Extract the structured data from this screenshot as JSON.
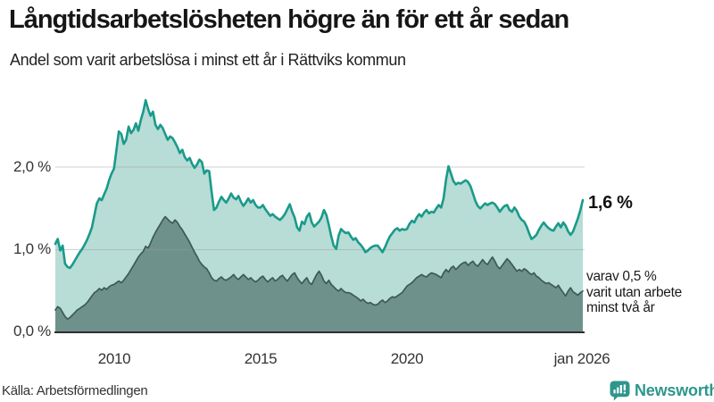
{
  "header": {
    "title": "Långtidsarbetslösheten högre än för ett år sedan",
    "subtitle": "Andel som varit arbetslösa i minst ett år i Rättviks kommun"
  },
  "axes": {
    "y_ticks": [
      "0,0 %",
      "1,0 %",
      "2,0 %"
    ],
    "x_ticks": [
      "2010",
      "2015",
      "2020",
      "jan 2026"
    ]
  },
  "annotations": {
    "end_value_total": "1,6 %",
    "end_note_line1": "varav 0,5 %",
    "end_note_line2": "varit utan arbete",
    "end_note_line3": "minst två år"
  },
  "footer": {
    "source": "Källa: Arbetsförmedlingen",
    "brand": "Newsworthy"
  },
  "colors": {
    "total_line": "#1a9a8a",
    "total_fill": "#b8dcd6",
    "long_line": "#3d5a56",
    "long_fill": "#6e918c",
    "gridline": "#9a9a9a",
    "baseline": "#2e2e2e",
    "brand_teal": "#2e968c"
  },
  "chart_data": {
    "type": "area",
    "title": "Långtidsarbetslösheten högre än för ett år sedan",
    "subtitle": "Andel som varit arbetslösa i minst ett år i Rättviks kommun",
    "x_start": "2008-01",
    "x_end": "2026-01",
    "interval": "monthly",
    "ylim": [
      0,
      2.9
    ],
    "y_unit": "%",
    "grid": "horizontal",
    "y_gridlines": [
      1.0,
      2.0
    ],
    "source": "Arbetsförmedlingen",
    "series": [
      {
        "name": "Andel arbetslösa minst ett år",
        "color": "#1a9a8a",
        "fill": "#b8dcd6",
        "end_label": "1,6 %",
        "end_value": 1.6,
        "values": [
          1.07,
          1.13,
          0.99,
          1.05,
          0.83,
          0.79,
          0.78,
          0.82,
          0.87,
          0.92,
          0.97,
          1.01,
          1.06,
          1.12,
          1.19,
          1.27,
          1.42,
          1.56,
          1.62,
          1.6,
          1.67,
          1.74,
          1.84,
          1.92,
          1.98,
          2.2,
          2.43,
          2.4,
          2.28,
          2.33,
          2.49,
          2.41,
          2.45,
          2.53,
          2.44,
          2.57,
          2.67,
          2.81,
          2.7,
          2.62,
          2.67,
          2.51,
          2.46,
          2.51,
          2.47,
          2.4,
          2.33,
          2.37,
          2.35,
          2.3,
          2.24,
          2.17,
          2.21,
          2.12,
          2.08,
          2.11,
          2.04,
          1.99,
          2.03,
          2.09,
          2.06,
          1.92,
          1.96,
          1.95,
          1.7,
          1.48,
          1.51,
          1.58,
          1.64,
          1.6,
          1.57,
          1.62,
          1.68,
          1.63,
          1.61,
          1.65,
          1.58,
          1.53,
          1.57,
          1.62,
          1.57,
          1.6,
          1.54,
          1.51,
          1.51,
          1.54,
          1.49,
          1.45,
          1.41,
          1.43,
          1.4,
          1.38,
          1.36,
          1.39,
          1.43,
          1.49,
          1.55,
          1.46,
          1.39,
          1.27,
          1.23,
          1.34,
          1.31,
          1.4,
          1.44,
          1.33,
          1.28,
          1.31,
          1.34,
          1.39,
          1.48,
          1.42,
          1.3,
          1.16,
          1.05,
          1.01,
          1.17,
          1.25,
          1.22,
          1.2,
          1.21,
          1.16,
          1.12,
          1.14,
          1.09,
          1.06,
          1.02,
          0.97,
          0.99,
          1.02,
          1.04,
          1.05,
          1.05,
          1.01,
          0.97,
          1.03,
          1.1,
          1.16,
          1.2,
          1.24,
          1.26,
          1.23,
          1.25,
          1.24,
          1.25,
          1.31,
          1.35,
          1.33,
          1.39,
          1.43,
          1.4,
          1.45,
          1.48,
          1.44,
          1.46,
          1.45,
          1.5,
          1.54,
          1.51,
          1.62,
          1.85,
          2.01,
          1.92,
          1.83,
          1.79,
          1.81,
          1.8,
          1.82,
          1.84,
          1.82,
          1.77,
          1.68,
          1.59,
          1.53,
          1.5,
          1.53,
          1.56,
          1.54,
          1.56,
          1.57,
          1.55,
          1.51,
          1.46,
          1.5,
          1.53,
          1.54,
          1.48,
          1.46,
          1.51,
          1.47,
          1.4,
          1.36,
          1.34,
          1.28,
          1.2,
          1.13,
          1.15,
          1.18,
          1.24,
          1.29,
          1.33,
          1.29,
          1.26,
          1.24,
          1.23,
          1.28,
          1.32,
          1.27,
          1.33,
          1.29,
          1.22,
          1.18,
          1.22,
          1.3,
          1.38,
          1.48,
          1.6
        ]
      },
      {
        "name": "Varav utan arbete minst två år",
        "color": "#3d5a56",
        "fill": "#6e918c",
        "end_label": "varav 0,5 % varit utan arbete minst två år",
        "end_value": 0.5,
        "values": [
          0.27,
          0.31,
          0.29,
          0.24,
          0.19,
          0.16,
          0.18,
          0.21,
          0.24,
          0.27,
          0.29,
          0.31,
          0.33,
          0.36,
          0.4,
          0.44,
          0.48,
          0.5,
          0.53,
          0.51,
          0.54,
          0.52,
          0.55,
          0.57,
          0.58,
          0.6,
          0.62,
          0.6,
          0.63,
          0.67,
          0.71,
          0.76,
          0.81,
          0.86,
          0.91,
          0.95,
          0.98,
          1.04,
          1.02,
          1.08,
          1.15,
          1.21,
          1.26,
          1.31,
          1.36,
          1.4,
          1.37,
          1.34,
          1.32,
          1.36,
          1.33,
          1.28,
          1.24,
          1.19,
          1.14,
          1.09,
          1.03,
          0.97,
          0.92,
          0.86,
          0.82,
          0.79,
          0.77,
          0.72,
          0.66,
          0.63,
          0.62,
          0.65,
          0.67,
          0.64,
          0.63,
          0.65,
          0.67,
          0.7,
          0.66,
          0.64,
          0.67,
          0.7,
          0.67,
          0.64,
          0.66,
          0.63,
          0.61,
          0.63,
          0.66,
          0.68,
          0.64,
          0.61,
          0.64,
          0.66,
          0.62,
          0.64,
          0.67,
          0.69,
          0.65,
          0.62,
          0.66,
          0.7,
          0.72,
          0.66,
          0.62,
          0.59,
          0.63,
          0.66,
          0.6,
          0.58,
          0.64,
          0.7,
          0.74,
          0.69,
          0.62,
          0.59,
          0.63,
          0.58,
          0.55,
          0.52,
          0.5,
          0.53,
          0.5,
          0.48,
          0.48,
          0.47,
          0.45,
          0.43,
          0.41,
          0.38,
          0.4,
          0.37,
          0.35,
          0.36,
          0.34,
          0.33,
          0.34,
          0.37,
          0.39,
          0.36,
          0.38,
          0.41,
          0.43,
          0.42,
          0.44,
          0.46,
          0.48,
          0.52,
          0.56,
          0.58,
          0.6,
          0.63,
          0.66,
          0.68,
          0.7,
          0.68,
          0.67,
          0.7,
          0.72,
          0.71,
          0.7,
          0.68,
          0.66,
          0.72,
          0.76,
          0.73,
          0.78,
          0.8,
          0.76,
          0.79,
          0.82,
          0.84,
          0.85,
          0.81,
          0.84,
          0.86,
          0.82,
          0.8,
          0.84,
          0.88,
          0.84,
          0.82,
          0.87,
          0.91,
          0.86,
          0.8,
          0.77,
          0.81,
          0.85,
          0.89,
          0.86,
          0.82,
          0.78,
          0.74,
          0.76,
          0.74,
          0.77,
          0.75,
          0.72,
          0.7,
          0.72,
          0.68,
          0.66,
          0.63,
          0.61,
          0.59,
          0.6,
          0.58,
          0.56,
          0.54,
          0.57,
          0.52,
          0.48,
          0.44,
          0.5,
          0.54,
          0.49,
          0.47,
          0.45,
          0.48,
          0.5
        ]
      }
    ]
  }
}
